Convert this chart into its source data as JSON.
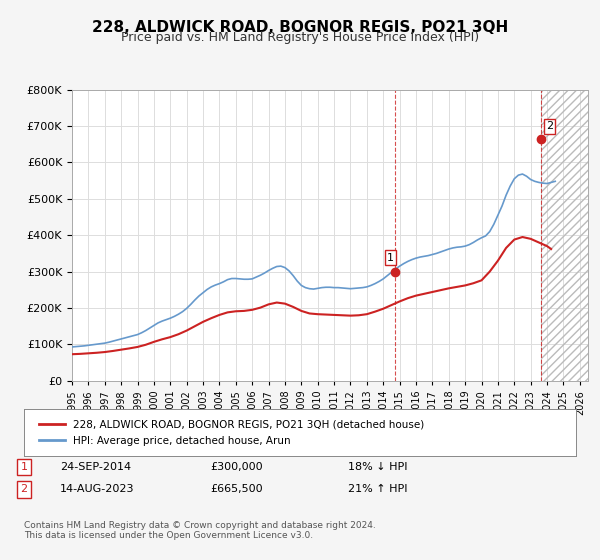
{
  "title": "228, ALDWICK ROAD, BOGNOR REGIS, PO21 3QH",
  "subtitle": "Price paid vs. HM Land Registry's House Price Index (HPI)",
  "hpi_label": "HPI: Average price, detached house, Arun",
  "property_label": "228, ALDWICK ROAD, BOGNOR REGIS, PO21 3QH (detached house)",
  "footer": "Contains HM Land Registry data © Crown copyright and database right 2024.\nThis data is licensed under the Open Government Licence v3.0.",
  "transaction1_label": "1",
  "transaction1_date": "24-SEP-2014",
  "transaction1_price": "£300,000",
  "transaction1_hpi": "18% ↓ HPI",
  "transaction2_label": "2",
  "transaction2_date": "14-AUG-2023",
  "transaction2_price": "£665,500",
  "transaction2_hpi": "21% ↑ HPI",
  "hpi_color": "#6699cc",
  "property_color": "#cc2222",
  "dot1_color": "#cc2222",
  "dot2_color": "#cc2222",
  "vline_color": "#cc2222",
  "background_color": "#f5f5f5",
  "plot_bg_color": "#ffffff",
  "ylim": [
    0,
    800000
  ],
  "xlim_start": 1995.0,
  "xlim_end": 2026.5,
  "transaction1_x": 2014.73,
  "transaction1_y": 300000,
  "transaction2_x": 2023.62,
  "transaction2_y": 665500,
  "hpi_years": [
    1995.0,
    1995.25,
    1995.5,
    1995.75,
    1996.0,
    1996.25,
    1996.5,
    1996.75,
    1997.0,
    1997.25,
    1997.5,
    1997.75,
    1998.0,
    1998.25,
    1998.5,
    1998.75,
    1999.0,
    1999.25,
    1999.5,
    1999.75,
    2000.0,
    2000.25,
    2000.5,
    2000.75,
    2001.0,
    2001.25,
    2001.5,
    2001.75,
    2002.0,
    2002.25,
    2002.5,
    2002.75,
    2003.0,
    2003.25,
    2003.5,
    2003.75,
    2004.0,
    2004.25,
    2004.5,
    2004.75,
    2005.0,
    2005.25,
    2005.5,
    2005.75,
    2006.0,
    2006.25,
    2006.5,
    2006.75,
    2007.0,
    2007.25,
    2007.5,
    2007.75,
    2008.0,
    2008.25,
    2008.5,
    2008.75,
    2009.0,
    2009.25,
    2009.5,
    2009.75,
    2010.0,
    2010.25,
    2010.5,
    2010.75,
    2011.0,
    2011.25,
    2011.5,
    2011.75,
    2012.0,
    2012.25,
    2012.5,
    2012.75,
    2013.0,
    2013.25,
    2013.5,
    2013.75,
    2014.0,
    2014.25,
    2014.5,
    2014.75,
    2015.0,
    2015.25,
    2015.5,
    2015.75,
    2016.0,
    2016.25,
    2016.5,
    2016.75,
    2017.0,
    2017.25,
    2017.5,
    2017.75,
    2018.0,
    2018.25,
    2018.5,
    2018.75,
    2019.0,
    2019.25,
    2019.5,
    2019.75,
    2020.0,
    2020.25,
    2020.5,
    2020.75,
    2021.0,
    2021.25,
    2021.5,
    2021.75,
    2022.0,
    2022.25,
    2022.5,
    2022.75,
    2023.0,
    2023.25,
    2023.5,
    2023.75,
    2024.0,
    2024.25,
    2024.5
  ],
  "hpi_values": [
    93000,
    94000,
    95000,
    96000,
    97500,
    99000,
    100500,
    102000,
    103500,
    106000,
    109000,
    112000,
    115000,
    118000,
    121000,
    124000,
    127000,
    132000,
    138000,
    145000,
    152000,
    159000,
    164000,
    168000,
    172000,
    177000,
    183000,
    190000,
    199000,
    210000,
    222000,
    233000,
    242000,
    251000,
    258000,
    263000,
    267000,
    272000,
    278000,
    281000,
    281000,
    280000,
    279000,
    279000,
    280000,
    285000,
    290000,
    296000,
    303000,
    309000,
    314000,
    315000,
    311000,
    302000,
    289000,
    274000,
    262000,
    256000,
    253000,
    252000,
    254000,
    256000,
    257000,
    257000,
    256000,
    256000,
    255000,
    254000,
    253000,
    254000,
    255000,
    256000,
    258000,
    262000,
    267000,
    273000,
    280000,
    289000,
    298000,
    307000,
    315000,
    322000,
    328000,
    333000,
    337000,
    340000,
    342000,
    344000,
    347000,
    350000,
    354000,
    358000,
    362000,
    365000,
    367000,
    368000,
    370000,
    374000,
    380000,
    387000,
    393000,
    398000,
    410000,
    430000,
    455000,
    480000,
    510000,
    535000,
    555000,
    565000,
    568000,
    562000,
    553000,
    548000,
    545000,
    543000,
    542000,
    545000,
    548000
  ],
  "prop_years": [
    1995.0,
    1995.5,
    1996.0,
    1996.5,
    1997.0,
    1997.5,
    1998.0,
    1998.5,
    1999.0,
    1999.5,
    2000.0,
    2000.5,
    2001.0,
    2001.5,
    2002.0,
    2002.5,
    2003.0,
    2003.5,
    2004.0,
    2004.5,
    2005.0,
    2005.5,
    2006.0,
    2006.5,
    2007.0,
    2007.5,
    2008.0,
    2008.5,
    2009.0,
    2009.5,
    2010.0,
    2010.5,
    2011.0,
    2011.5,
    2012.0,
    2012.5,
    2013.0,
    2013.5,
    2014.0,
    2014.5,
    2015.0,
    2015.5,
    2016.0,
    2016.5,
    2017.0,
    2017.5,
    2018.0,
    2018.5,
    2019.0,
    2019.5,
    2020.0,
    2020.5,
    2021.0,
    2021.5,
    2022.0,
    2022.5,
    2023.0,
    2023.5,
    2024.0,
    2024.25
  ],
  "prop_values": [
    73000,
    74000,
    75500,
    77000,
    79000,
    82000,
    85500,
    89000,
    93000,
    99000,
    107000,
    114000,
    120000,
    128000,
    138000,
    150000,
    162000,
    172000,
    181000,
    188000,
    191000,
    192000,
    195000,
    201000,
    210000,
    215000,
    212000,
    203000,
    192000,
    185000,
    183000,
    182000,
    181000,
    180000,
    179000,
    180000,
    183000,
    190000,
    198000,
    208000,
    218000,
    227000,
    234000,
    239000,
    244000,
    249000,
    254000,
    258000,
    262000,
    268000,
    276000,
    300000,
    330000,
    365000,
    388000,
    395000,
    390000,
    380000,
    370000,
    362000
  ]
}
